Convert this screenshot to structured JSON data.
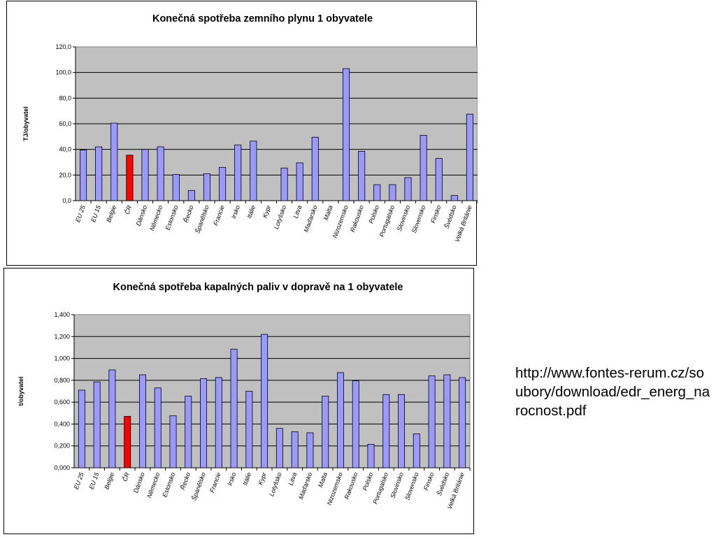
{
  "charts": [
    {
      "title": "Konečná spotřeba zemního plynu 1 obyvatele",
      "ylabel": "TJ/obyvatel"
    },
    {
      "title": "Konečná spotřeba kapalných paliv v dopravě na 1 obyvatele",
      "ylabel": "t/obyvatel"
    }
  ],
  "chart_data": [
    {
      "type": "bar",
      "title": "Konečná spotřeba zemního plynu 1 obyvatele",
      "xlabel": "",
      "ylabel": "TJ/obyvatel",
      "ylim": [
        0,
        120
      ],
      "yticks": [
        "0,0",
        "20,0",
        "40,0",
        "60,0",
        "80,0",
        "100,0",
        "120,0"
      ],
      "grid": true,
      "plot_bg": "#c0c0c0",
      "bar_color": "#9999ff",
      "highlight_color": "#ff0000",
      "highlight_category": "ČR",
      "categories": [
        "EU 25",
        "EU 15",
        "Belgie",
        "ČR",
        "Dánsko",
        "Německo",
        "Estonsko",
        "Řecko",
        "Španělsko",
        "Francie",
        "Irsko",
        "Itálie",
        "Kypr",
        "Lotyšsko",
        "Litva",
        "Maďarsko",
        "Malta",
        "Nizozemsko",
        "Rakousko",
        "Polsko",
        "Portugalsko",
        "Slovinsko",
        "Slovensko",
        "Finsko",
        "Švédsko",
        "Velká Británie"
      ],
      "values": [
        39.5,
        42,
        60.5,
        35.5,
        40,
        42,
        20.5,
        8,
        21,
        26,
        43.5,
        46.5,
        0,
        25.5,
        29.5,
        49.5,
        0,
        103,
        38.5,
        12.5,
        12.5,
        18,
        51,
        33,
        4,
        67.5
      ]
    },
    {
      "type": "bar",
      "title": "Konečná spotřeba kapalných paliv v dopravě na 1 obyvatele",
      "xlabel": "",
      "ylabel": "t/obyvatel",
      "ylim": [
        0,
        1.4
      ],
      "yticks": [
        "0,000",
        "0,200",
        "0,400",
        "0,600",
        "0,800",
        "1,000",
        "1,200",
        "1,400"
      ],
      "grid": true,
      "plot_bg": "#c0c0c0",
      "bar_color": "#9999ff",
      "highlight_color": "#ff0000",
      "highlight_category": "ČR",
      "categories": [
        "EU 25",
        "EU 15",
        "Belgie",
        "ČR",
        "Dánsko",
        "Německo",
        "Estonsko",
        "Řecko",
        "Španělsko",
        "Francie",
        "Irsko",
        "Itálie",
        "Kypr",
        "Lotyšsko",
        "Litva",
        "Maďarsko",
        "Malta",
        "Nizozemsko",
        "Rakousko",
        "Polsko",
        "Portugalsko",
        "Slovinsko",
        "Slovensko",
        "Finsko",
        "Švédsko",
        "Velká Británie"
      ],
      "values": [
        0.71,
        0.785,
        0.895,
        0.47,
        0.85,
        0.73,
        0.475,
        0.655,
        0.815,
        0.825,
        1.085,
        0.7,
        1.22,
        0.36,
        0.33,
        0.32,
        0.655,
        0.87,
        0.795,
        0.215,
        0.67,
        0.67,
        0.31,
        0.84,
        0.85,
        0.825
      ]
    }
  ],
  "source": {
    "text": "http://www.fontes-rerum.cz/soubory/download/edr_energ_narocnost.pdf"
  }
}
